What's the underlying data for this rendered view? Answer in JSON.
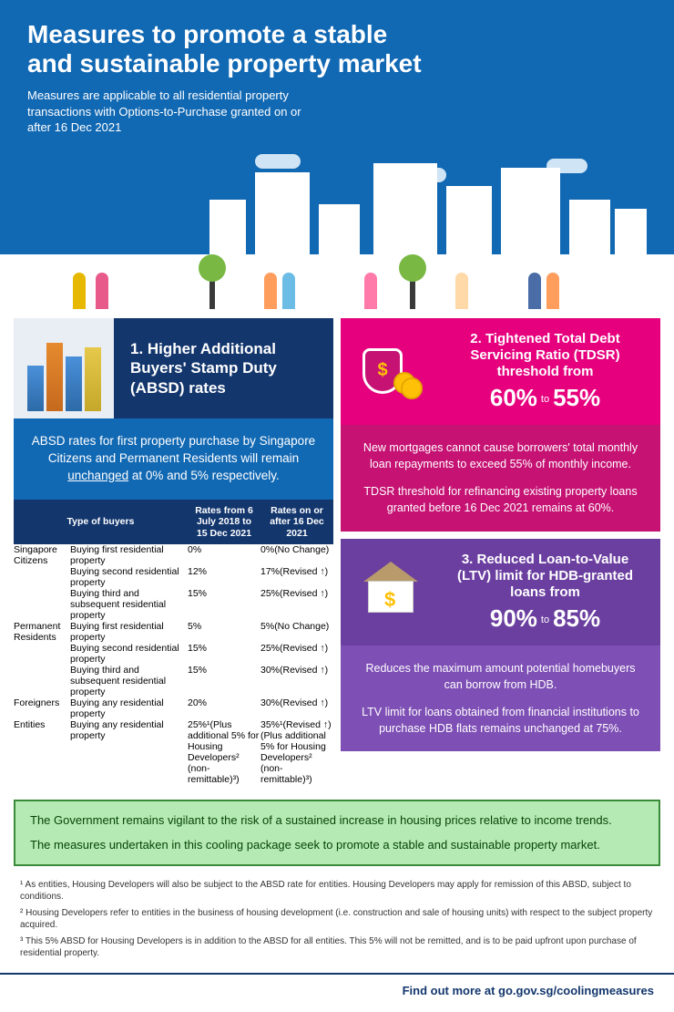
{
  "hero": {
    "title_l1": "Measures to promote a stable",
    "title_l2": "and sustainable property market",
    "subtitle": "Measures are applicable to all residential property transactions with Options-to-Purchase granted on or after 16 Dec 2021"
  },
  "card1": {
    "title": "1. Higher Additional Buyers' Stamp Duty (ABSD) rates",
    "body_pre": "ABSD rates for first property purchase by Singapore Citizens and Permanent Residents will remain ",
    "body_und": "unchanged",
    "body_post": " at 0% and 5% respectively."
  },
  "table": {
    "head": {
      "type": "Type of buyers",
      "col_old": "Rates from 6 July 2018 to 15 Dec 2021",
      "col_new": "Rates on or after 16 Dec 2021"
    },
    "groups": [
      {
        "cat": "Singapore Citizens",
        "catClass": "",
        "rows": [
          {
            "desc": "Buying first residential property",
            "old": {
              "v": "0%"
            },
            "new": {
              "v": "0%",
              "note": "(No Change)",
              "noteClass": "noteg"
            }
          },
          {
            "desc": "Buying second residential property",
            "old": {
              "v": "12%"
            },
            "new": {
              "v": "17%",
              "note": "(Revised ↑)",
              "noteClass": "note"
            },
            "alt": true
          },
          {
            "desc": "Buying third and subsequent residential property",
            "old": {
              "v": "15%"
            },
            "new": {
              "v": "25%",
              "note": "(Revised ↑)",
              "noteClass": "note"
            }
          }
        ]
      },
      {
        "cat": "Permanent Residents",
        "catClass": "pr",
        "rows": [
          {
            "desc": "Buying first residential property",
            "old": {
              "v": "5%"
            },
            "new": {
              "v": "5%",
              "note": "(No Change)",
              "noteClass": "noteg"
            }
          },
          {
            "desc": "Buying second residential property",
            "old": {
              "v": "15%"
            },
            "new": {
              "v": "25%",
              "note": "(Revised ↑)",
              "noteClass": "note"
            },
            "alt": true
          },
          {
            "desc": "Buying third and subsequent residential property",
            "old": {
              "v": "15%"
            },
            "new": {
              "v": "30%",
              "note": "(Revised ↑)",
              "noteClass": "note"
            }
          }
        ]
      },
      {
        "cat": "Foreigners",
        "catClass": "fo",
        "rows": [
          {
            "desc": "Buying any residential property",
            "old": {
              "v": "20%"
            },
            "new": {
              "v": "30%",
              "note": "(Revised ↑)",
              "noteClass": "note"
            }
          }
        ]
      },
      {
        "cat": "Entities",
        "catClass": "en",
        "rows": [
          {
            "desc": "Buying any residential property",
            "old": {
              "v": "25%¹",
              "tiny": "(Plus additional 5% for Housing Developers² (non-remittable)³)"
            },
            "new": {
              "v": "35%¹",
              "note": "(Revised ↑)",
              "noteClass": "note",
              "tiny": "(Plus additional 5% for Housing Developers² (non-remittable)³)"
            }
          }
        ]
      }
    ]
  },
  "card2": {
    "title": "2. Tightened Total Debt Servicing Ratio (TDSR) threshold from",
    "from": "60%",
    "to_word": "to",
    "to": "55%",
    "p1": "New mortgages cannot cause borrowers' total monthly loan repayments to exceed 55% of monthly income.",
    "p2": "TDSR threshold for refinancing existing property loans granted before 16 Dec 2021 remains at 60%."
  },
  "card3": {
    "title": "3. Reduced Loan-to-Value (LTV) limit for HDB-granted loans from",
    "from": "90%",
    "to_word": "to",
    "to": "85%",
    "p1": "Reduces the maximum amount potential homebuyers can borrow from HDB.",
    "p2": "LTV limit for loans obtained from financial institutions to purchase HDB flats remains unchanged at 75%."
  },
  "greenbox": {
    "p1": "The Government remains vigilant to the risk of a sustained increase in housing prices relative to income trends.",
    "p2": "The measures undertaken in this cooling package seek to promote a stable and sustainable property market."
  },
  "footnotes": {
    "f1": "¹ As entities, Housing Developers will also be subject to the ABSD rate for entities. Housing Developers may apply for remission of this ABSD, subject to conditions.",
    "f2": "² Housing Developers refer to entities in the business of housing development (i.e. construction and sale of housing units) with respect to the subject property acquired.",
    "f3": "³ This 5% ABSD for Housing Developers is in addition to the ABSD for all entities. This 5% will not be remitted, and is to be paid upfront upon purchase of residential property."
  },
  "footer": {
    "txt": "Find out more at go.gov.sg/coolingmeasures"
  }
}
